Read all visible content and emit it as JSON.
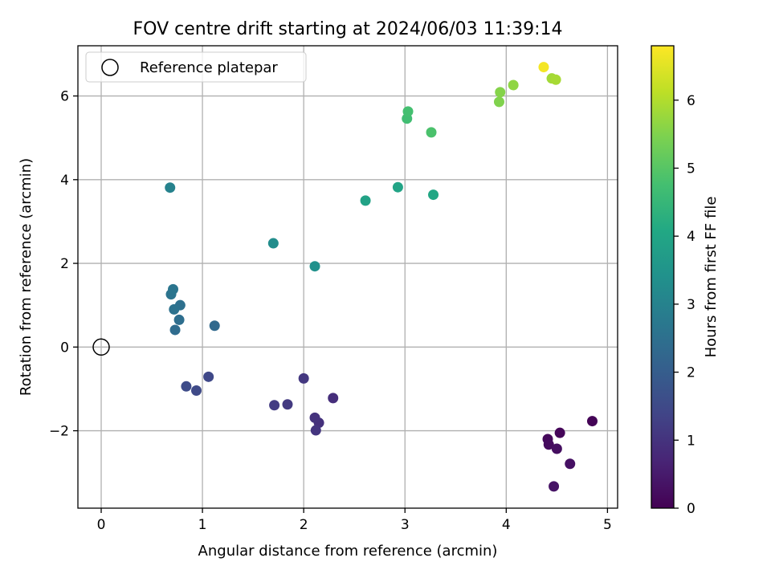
{
  "chart_data": {
    "type": "scatter",
    "title": "FOV centre drift starting at 2024/06/03 11:39:14",
    "xlabel": "Angular distance from reference (arcmin)",
    "ylabel": "Rotation from reference (arcmin)",
    "xlim": [
      -0.23,
      5.1
    ],
    "ylim": [
      -3.85,
      7.2
    ],
    "xticks": [
      0,
      1,
      2,
      3,
      4,
      5
    ],
    "xtick_labels": [
      "0",
      "1",
      "2",
      "3",
      "4",
      "5"
    ],
    "yticks": [
      -2,
      0,
      2,
      4,
      6
    ],
    "ytick_labels": [
      "−2",
      "0",
      "2",
      "4",
      "6"
    ],
    "grid": true,
    "legend": {
      "position": "top-left",
      "label": "Reference platepar"
    },
    "reference_point": {
      "x": 0,
      "y": 0
    },
    "colorbar": {
      "label": "Hours from first FF file",
      "colormap": "viridis",
      "range": [
        0,
        6.8
      ],
      "ticks": [
        0,
        1,
        2,
        3,
        4,
        5,
        6
      ],
      "tick_labels": [
        "0",
        "1",
        "2",
        "3",
        "4",
        "5",
        "6"
      ]
    },
    "points": [
      {
        "x": 4.85,
        "y": -1.77,
        "c": 0.05
      },
      {
        "x": 4.53,
        "y": -2.05,
        "c": 0.1
      },
      {
        "x": 4.41,
        "y": -2.2,
        "c": 0.15
      },
      {
        "x": 4.42,
        "y": -2.33,
        "c": 0.2
      },
      {
        "x": 4.5,
        "y": -2.43,
        "c": 0.25
      },
      {
        "x": 4.63,
        "y": -2.79,
        "c": 0.3
      },
      {
        "x": 4.47,
        "y": -3.33,
        "c": 0.35
      },
      {
        "x": 2.29,
        "y": -1.22,
        "c": 0.9
      },
      {
        "x": 2.15,
        "y": -1.81,
        "c": 0.95
      },
      {
        "x": 2.11,
        "y": -1.69,
        "c": 1.0
      },
      {
        "x": 2.12,
        "y": -1.99,
        "c": 1.05
      },
      {
        "x": 2.0,
        "y": -0.75,
        "c": 1.1
      },
      {
        "x": 1.84,
        "y": -1.37,
        "c": 1.15
      },
      {
        "x": 1.71,
        "y": -1.39,
        "c": 1.2
      },
      {
        "x": 1.06,
        "y": -0.71,
        "c": 1.45
      },
      {
        "x": 0.94,
        "y": -1.04,
        "c": 1.5
      },
      {
        "x": 0.84,
        "y": -0.94,
        "c": 1.55
      },
      {
        "x": 1.12,
        "y": 0.51,
        "c": 2.3
      },
      {
        "x": 0.73,
        "y": 0.41,
        "c": 2.4
      },
      {
        "x": 0.77,
        "y": 0.65,
        "c": 2.45
      },
      {
        "x": 0.78,
        "y": 1.0,
        "c": 2.5
      },
      {
        "x": 0.72,
        "y": 0.9,
        "c": 2.55
      },
      {
        "x": 0.69,
        "y": 1.26,
        "c": 2.6
      },
      {
        "x": 0.71,
        "y": 1.38,
        "c": 2.65
      },
      {
        "x": 0.68,
        "y": 3.81,
        "c": 3.0
      },
      {
        "x": 1.7,
        "y": 2.48,
        "c": 3.3
      },
      {
        "x": 2.11,
        "y": 1.93,
        "c": 3.4
      },
      {
        "x": 2.61,
        "y": 3.5,
        "c": 3.9
      },
      {
        "x": 2.93,
        "y": 3.82,
        "c": 3.95
      },
      {
        "x": 3.28,
        "y": 3.64,
        "c": 4.05
      },
      {
        "x": 3.02,
        "y": 5.46,
        "c": 4.7
      },
      {
        "x": 3.03,
        "y": 5.63,
        "c": 4.75
      },
      {
        "x": 3.26,
        "y": 5.13,
        "c": 4.85
      },
      {
        "x": 3.93,
        "y": 5.86,
        "c": 5.5
      },
      {
        "x": 3.94,
        "y": 6.09,
        "c": 5.55
      },
      {
        "x": 4.07,
        "y": 6.26,
        "c": 5.65
      },
      {
        "x": 4.45,
        "y": 6.42,
        "c": 5.85
      },
      {
        "x": 4.49,
        "y": 6.39,
        "c": 5.9
      },
      {
        "x": 4.37,
        "y": 6.69,
        "c": 6.7
      }
    ]
  }
}
